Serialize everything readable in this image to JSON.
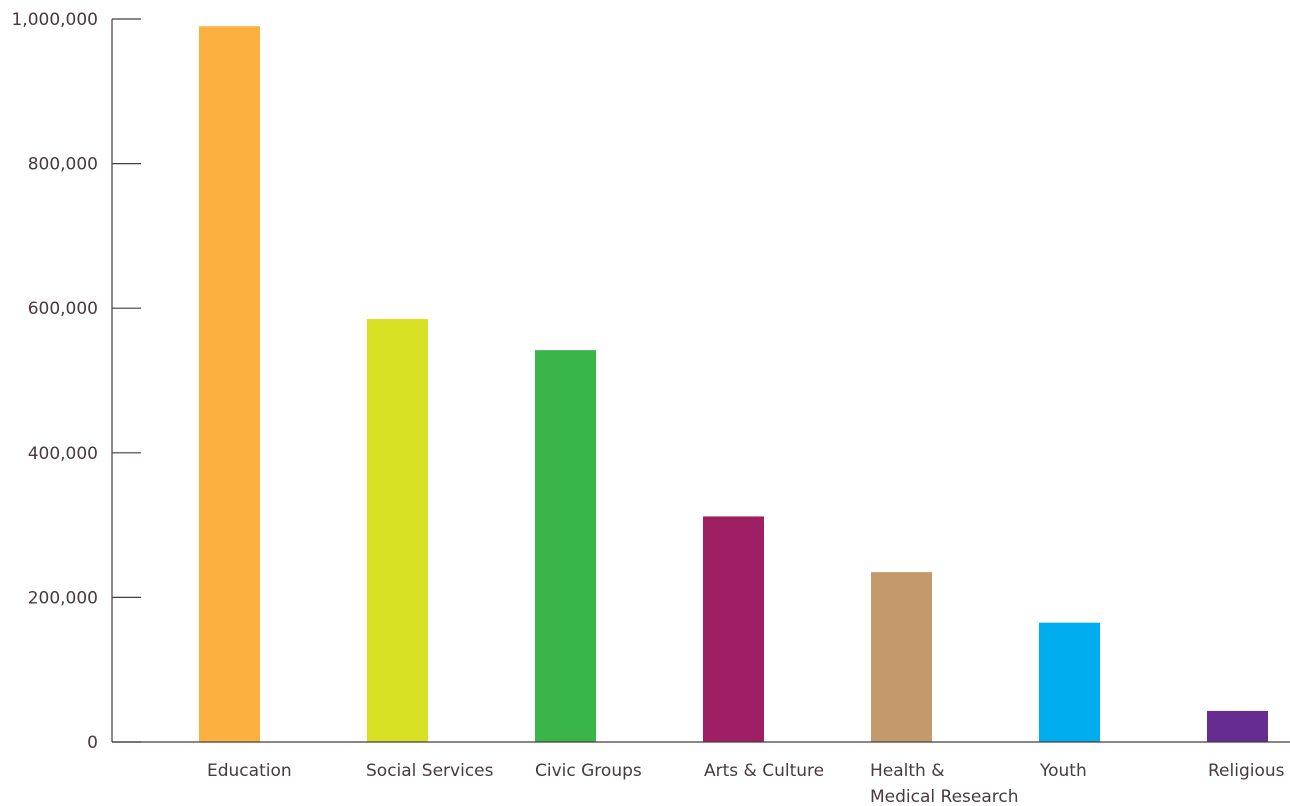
{
  "chart_data": {
    "type": "bar",
    "title": "",
    "xlabel": "",
    "ylabel": "",
    "categories": [
      [
        "Education"
      ],
      [
        "Social Services"
      ],
      [
        "Civic Groups"
      ],
      [
        "Arts & Culture"
      ],
      [
        "Health &",
        "Medical Research"
      ],
      [
        "Youth"
      ],
      [
        "Religious"
      ]
    ],
    "values": [
      990000,
      585000,
      542000,
      312000,
      235000,
      165000,
      43000
    ],
    "colors": [
      "#fbb040",
      "#d7e022",
      "#39b54a",
      "#9e1f63",
      "#c49a6c",
      "#00aeef",
      "#662d91"
    ],
    "ylim": [
      0,
      1000000
    ],
    "yticks": [
      0,
      200000,
      400000,
      600000,
      800000,
      1000000
    ],
    "ytick_labels": [
      "0",
      "200,000",
      "400,000",
      "600,000",
      "800,000",
      "1,000,000"
    ],
    "grid": false,
    "axis_color": "#4a3a3f"
  }
}
